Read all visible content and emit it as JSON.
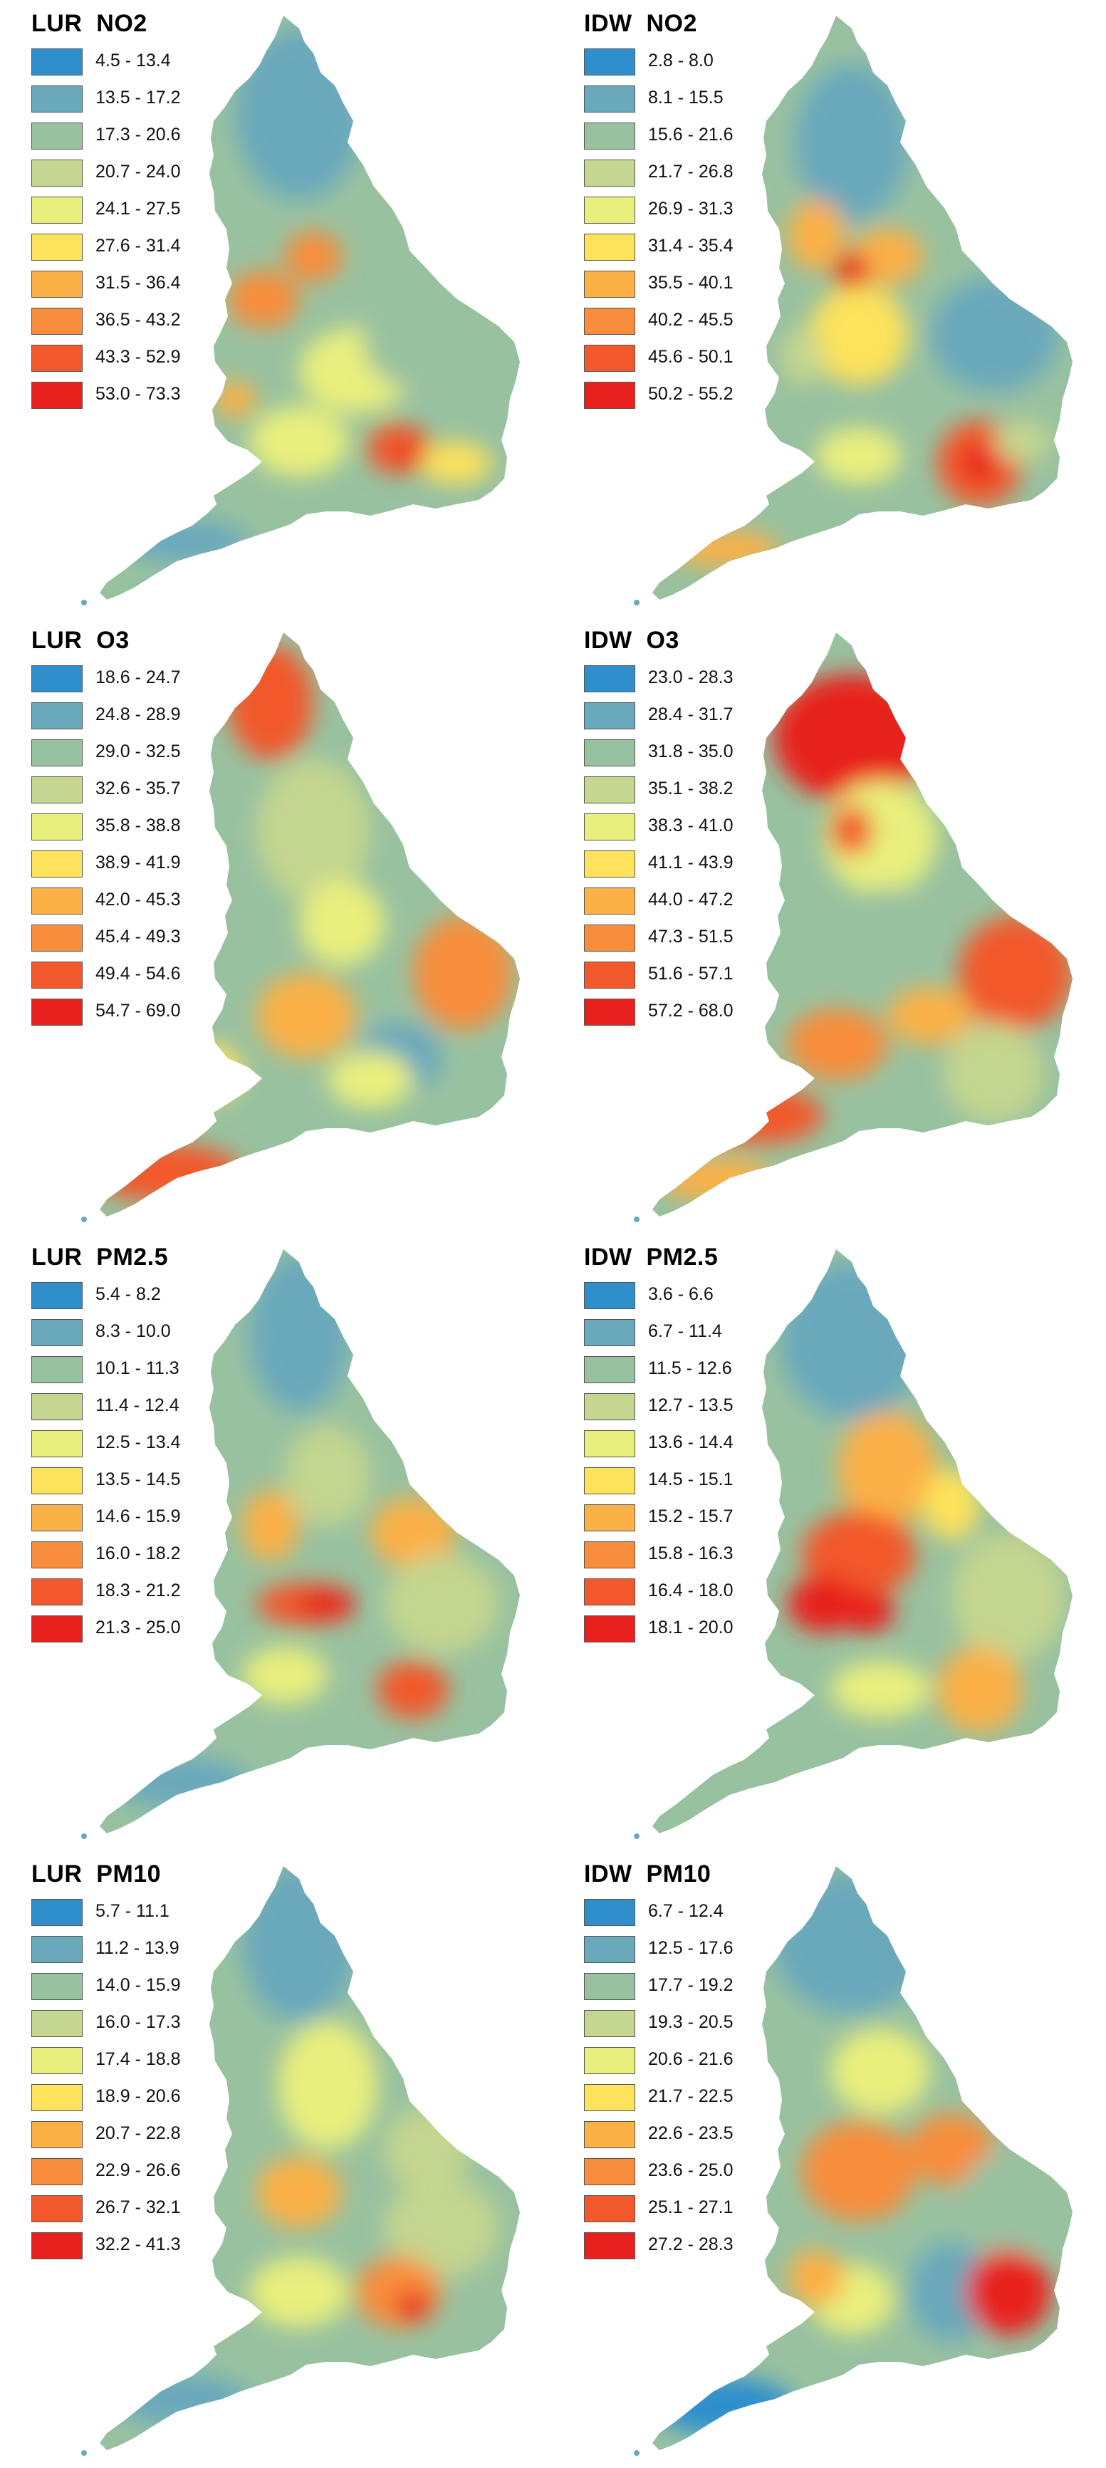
{
  "palette": [
    "#2f8fcd",
    "#6aa9bc",
    "#98c1a0",
    "#c4d68f",
    "#e8ef7d",
    "#fde25b",
    "#fbb146",
    "#f88d3b",
    "#f2582b",
    "#e8211f"
  ],
  "panels": [
    {
      "method": "LUR",
      "pollutant": "NO2",
      "title": "LUR  NO2",
      "ranges": [
        "4.5 - 13.4",
        "13.5 - 17.2",
        "17.3 - 20.6",
        "20.7 - 24.0",
        "24.1 - 27.5",
        "27.6 - 31.4",
        "31.5 - 36.4",
        "36.5 - 43.2",
        "43.3 - 52.9",
        "53.0 - 73.3"
      ]
    },
    {
      "method": "IDW",
      "pollutant": "NO2",
      "title": "IDW  NO2",
      "ranges": [
        "2.8 - 8.0",
        "8.1 - 15.5",
        "15.6 - 21.6",
        "21.7 - 26.8",
        "26.9 - 31.3",
        "31.4 - 35.4",
        "35.5 - 40.1",
        "40.2 - 45.5",
        "45.6 - 50.1",
        "50.2 - 55.2"
      ]
    },
    {
      "method": "LUR",
      "pollutant": "O3",
      "title": "LUR  O3",
      "ranges": [
        "18.6 - 24.7",
        "24.8 - 28.9",
        "29.0 - 32.5",
        "32.6 - 35.7",
        "35.8 - 38.8",
        "38.9 - 41.9",
        "42.0 - 45.3",
        "45.4 - 49.3",
        "49.4 - 54.6",
        "54.7 - 69.0"
      ]
    },
    {
      "method": "IDW",
      "pollutant": "O3",
      "title": "IDW  O3",
      "ranges": [
        "23.0 - 28.3",
        "28.4 - 31.7",
        "31.8 - 35.0",
        "35.1 - 38.2",
        "38.3 - 41.0",
        "41.1 - 43.9",
        "44.0 - 47.2",
        "47.3 - 51.5",
        "51.6 - 57.1",
        "57.2 - 68.0"
      ]
    },
    {
      "method": "LUR",
      "pollutant": "PM2.5",
      "title": "LUR  PM2.5",
      "ranges": [
        "5.4 - 8.2",
        "8.3 - 10.0",
        "10.1 - 11.3",
        "11.4 - 12.4",
        "12.5 - 13.4",
        "13.5 - 14.5",
        "14.6 - 15.9",
        "16.0 - 18.2",
        "18.3 - 21.2",
        "21.3 - 25.0"
      ]
    },
    {
      "method": "IDW",
      "pollutant": "PM2.5",
      "title": "IDW  PM2.5",
      "ranges": [
        "3.6 - 6.6",
        "6.7 - 11.4",
        "11.5 - 12.6",
        "12.7 - 13.5",
        "13.6 - 14.4",
        "14.5 - 15.1",
        "15.2 - 15.7",
        "15.8 - 16.3",
        "16.4 - 18.0",
        "18.1 - 20.0"
      ]
    },
    {
      "method": "LUR",
      "pollutant": "PM10",
      "title": "LUR  PM10",
      "ranges": [
        "5.7 - 11.1",
        "11.2 - 13.9",
        "14.0 - 15.9",
        "16.0 - 17.3",
        "17.4 - 18.8",
        "18.9 - 20.6",
        "20.7 - 22.8",
        "22.9 - 26.6",
        "26.7 - 32.1",
        "32.2 - 41.3"
      ]
    },
    {
      "method": "IDW",
      "pollutant": "PM10",
      "title": "IDW  PM10",
      "ranges": [
        "6.7 - 12.4",
        "12.5 - 17.6",
        "17.7 - 19.2",
        "19.3 - 20.5",
        "20.6 - 21.6",
        "21.7 - 22.5",
        "22.6 - 23.5",
        "23.6 - 25.0",
        "25.1 - 27.1",
        "27.2 - 28.3"
      ]
    }
  ]
}
